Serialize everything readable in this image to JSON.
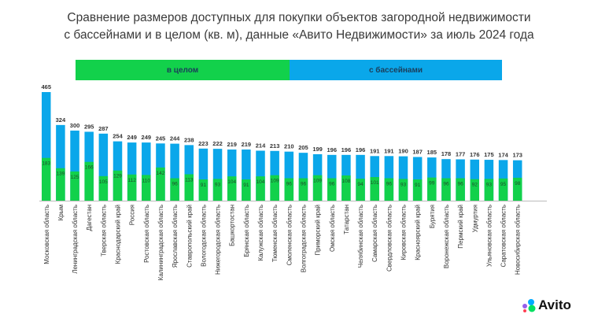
{
  "chart_data": {
    "type": "bar",
    "title_lines": [
      "Сравнение размеров доступных для покупки объектов загородной недвижимости",
      "с бассейнами и в целом (кв. м), данные «Авито Недвижимости» за июль 2024 года"
    ],
    "legend": [
      {
        "name": "в целом",
        "color": "#12d14b"
      },
      {
        "name": "с бассейнами",
        "color": "#0aa7ea"
      }
    ],
    "categories": [
      "Московская область",
      "Крым",
      "Ленинградская область",
      "Дагестан",
      "Тверская область",
      "Краснодарский край",
      "Россия",
      "Ростовская область",
      "Калининградская область",
      "Ярославская область",
      "Ставропольский край",
      "Вологодская область",
      "Нижегородская область",
      "Башкортостан",
      "Брянская область",
      "Калужская область",
      "Тюменская область",
      "Смоленская область",
      "Волгоградская область",
      "Приморский край",
      "Омская область",
      "Татарстан",
      "Челябинская область",
      "Самарская область",
      "Свердловская область",
      "Кировская область",
      "Красноярский край",
      "Бурятия",
      "Воронежская область",
      "Пермский край",
      "Удмуртия",
      "Ульяновская область",
      "Саратовская область",
      "Новосибирская область"
    ],
    "series": [
      {
        "name": "с бассейнами",
        "color": "#0aa7ea",
        "values": [
          465,
          324,
          300,
          295,
          287,
          254,
          249,
          249,
          245,
          244,
          238,
          223,
          222,
          219,
          219,
          214,
          213,
          210,
          205,
          199,
          196,
          196,
          196,
          191,
          191,
          190,
          187,
          185,
          178,
          177,
          176,
          175,
          174,
          173
        ]
      },
      {
        "name": "в целом",
        "color": "#12d14b",
        "values": [
          183,
          139,
          125,
          166,
          105,
          129,
          112,
          110,
          142,
          96,
          113,
          91,
          93,
          104,
          91,
          104,
          109,
          96,
          96,
          109,
          96,
          108,
          94,
          101,
          96,
          93,
          91,
          99,
          96,
          96,
          92,
          93,
          95,
          98
        ]
      }
    ],
    "ylim": [
      0,
      480
    ]
  },
  "brand": {
    "logo_text": "Avito"
  }
}
